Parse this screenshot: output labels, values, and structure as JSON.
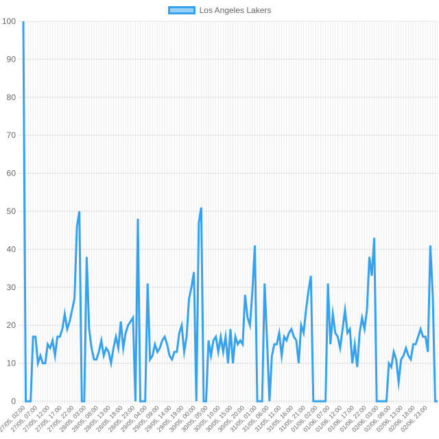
{
  "chart_data": {
    "type": "line",
    "legend_position": "top",
    "grid": true,
    "ylim": [
      0,
      100
    ],
    "yticks": [
      0,
      10,
      20,
      30,
      40,
      50,
      60,
      70,
      80,
      90,
      100
    ],
    "x_labels": [
      "27/05, 02:00",
      "27/05, 07:00",
      "27/05, 12:00",
      "27/05, 17:00",
      "27/05, 22:00",
      "28/05, 03:00",
      "28/05, 08:00",
      "28/05, 13:00",
      "28/05, 18:00",
      "28/05, 23:00",
      "29/05, 04:00",
      "29/05, 09:00",
      "29/05, 14:00",
      "29/05, 19:00",
      "30/05, 00:00",
      "30/05, 05:00",
      "30/05, 10:00",
      "30/05, 15:00",
      "30/05, 20:00",
      "31/05, 01:00",
      "31/05, 06:00",
      "31/05, 11:00",
      "31/05, 16:00",
      "31/05, 21:00",
      "01/06, 02:00",
      "01/06, 07:00",
      "01/06, 12:00",
      "01/06, 17:00",
      "01/06, 22:00",
      "02/06, 03:00",
      "02/06, 08:00",
      "02/06, 13:00",
      "02/06, 18:00",
      "02/06, 23:00"
    ],
    "series": [
      {
        "name": "Los Angeles Lakers",
        "color": "#36a2eb",
        "fill": "#9ad0f5",
        "values": [
          100,
          0,
          0,
          0,
          17,
          17,
          10,
          12,
          10,
          10,
          15,
          14,
          16,
          12,
          17,
          17,
          19,
          23,
          19,
          21,
          24,
          27,
          46,
          50,
          0,
          0,
          38,
          19,
          14,
          11,
          11,
          13,
          16,
          12,
          14,
          13,
          10,
          14,
          17,
          14,
          21,
          14,
          18,
          20,
          21,
          22,
          0,
          48,
          0,
          0,
          0,
          31,
          11,
          12,
          15,
          13,
          14,
          16,
          17,
          15,
          12,
          11,
          13,
          13,
          18,
          20,
          13,
          17,
          27,
          30,
          34,
          0,
          47,
          51,
          0,
          0,
          16,
          12,
          16,
          17,
          13,
          17,
          13,
          17,
          10,
          19,
          10,
          17,
          15,
          16,
          15,
          28,
          22,
          20,
          29,
          41,
          0,
          0,
          0,
          31,
          16,
          0,
          12,
          15,
          15,
          18,
          12,
          17,
          16,
          18,
          19,
          17,
          16,
          10,
          20,
          18,
          24,
          29,
          33,
          0,
          0,
          0,
          0,
          0,
          0,
          31,
          15,
          23,
          18,
          17,
          14,
          19,
          24,
          18,
          19,
          10,
          15,
          9,
          18,
          22,
          19,
          24,
          38,
          33,
          43,
          0,
          0,
          0,
          0,
          0,
          10,
          9,
          13,
          11,
          5,
          11,
          12,
          14,
          12,
          11,
          15,
          15,
          17,
          19,
          17,
          17,
          13,
          41,
          28,
          0,
          0
        ]
      }
    ]
  }
}
